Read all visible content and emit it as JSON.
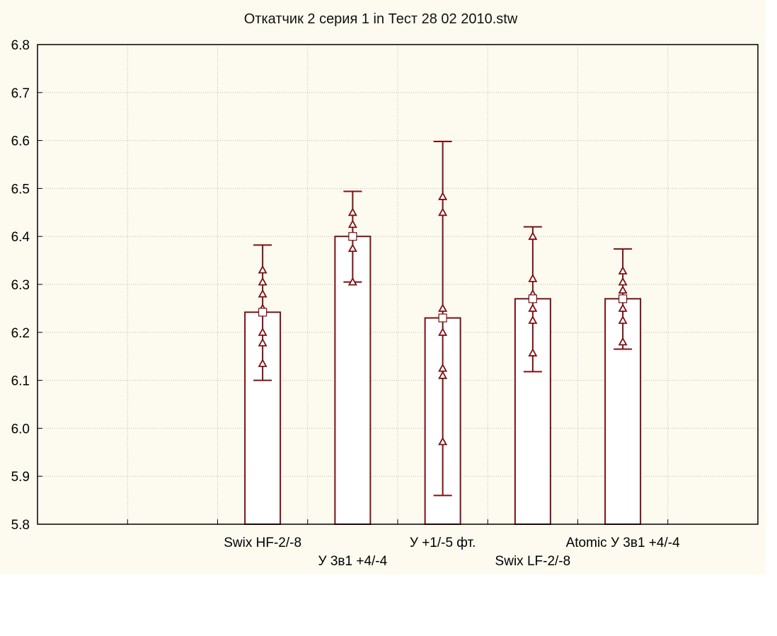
{
  "chart_data": {
    "type": "bar",
    "title": "Откатчик 2 серия 1 in Тест 28 02 2010.stw",
    "xlabel": "",
    "ylabel": "",
    "ylim": [
      5.8,
      6.8
    ],
    "yticks": [
      "5.8",
      "5.9",
      "6.0",
      "6.1",
      "6.2",
      "6.3",
      "6.4",
      "6.5",
      "6.6",
      "6.7",
      "6.8"
    ],
    "grid": true,
    "legend": "none",
    "categories": [
      "Swix HF-2/-8",
      "У 3в1 +4/-4",
      "У +1/-5 фт.",
      "Swix LF-2/-8",
      "Atomic У 3в1 +4/-4"
    ],
    "values": [
      6.242,
      6.4,
      6.23,
      6.27,
      6.27
    ],
    "error_low": [
      6.1,
      6.305,
      5.86,
      6.118,
      6.165
    ],
    "error_high": [
      6.382,
      6.494,
      6.598,
      6.42,
      6.374
    ],
    "points": [
      [
        6.33,
        6.305,
        6.28,
        6.25,
        6.2,
        6.178,
        6.135
      ],
      [
        6.45,
        6.425,
        6.4,
        6.375,
        6.305
      ],
      [
        6.483,
        6.45,
        6.25,
        6.2,
        6.125,
        6.11,
        5.972
      ],
      [
        6.4,
        6.312,
        6.28,
        6.25,
        6.225,
        6.157
      ],
      [
        6.328,
        6.305,
        6.288,
        6.25,
        6.225,
        6.18
      ]
    ],
    "colors": {
      "bar_stroke": "#7b1113",
      "mean_marker": "#7b1113",
      "grid": "#b8b8b8"
    }
  }
}
